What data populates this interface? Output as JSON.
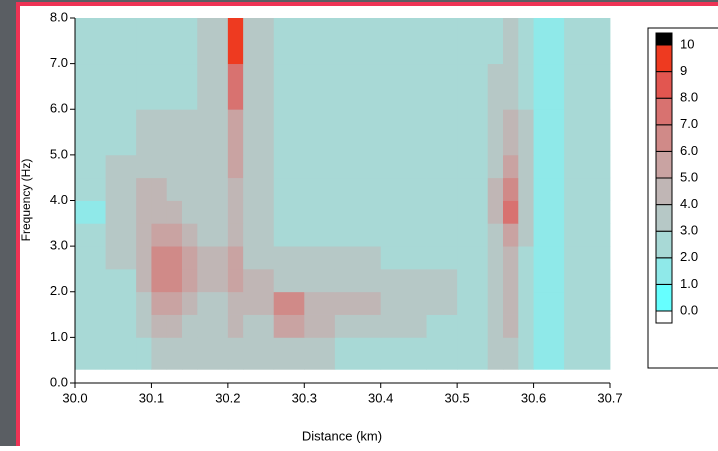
{
  "chart_data": {
    "type": "contour",
    "xlabel": "Distance (km)",
    "ylabel": "Frequency (Hz)",
    "xlim": [
      30.0,
      30.7
    ],
    "xticks": [
      {
        "value": 30,
        "label": "30.0"
      },
      30.1,
      30.2,
      30.3,
      30.4,
      30.5,
      30.6,
      30.7
    ],
    "ylim": [
      0,
      8
    ],
    "yticks": [
      {
        "value": 0,
        "label": "0.0"
      },
      {
        "value": 1,
        "label": "1.0"
      },
      {
        "value": 2,
        "label": "2.0"
      },
      {
        "value": 3,
        "label": "3.0"
      },
      {
        "value": 4,
        "label": "4.0"
      },
      {
        "value": 5,
        "label": "5.0"
      },
      {
        "value": 6,
        "label": "6.0"
      },
      {
        "value": 7,
        "label": "7.0"
      },
      {
        "value": 8,
        "label": "8.0"
      }
    ],
    "x_edges": [
      30.0,
      30.04,
      30.08,
      30.1,
      30.12,
      30.14,
      30.16,
      30.2,
      30.22,
      30.26,
      30.3,
      30.34,
      30.4,
      30.46,
      30.5,
      30.54,
      30.56,
      30.58,
      30.6,
      30.64,
      30.7
    ],
    "y_edges": [
      0.3,
      1.0,
      1.5,
      2.0,
      2.5,
      3.0,
      3.5,
      4.0,
      4.5,
      5.0,
      6.0,
      7.0,
      8.0
    ],
    "z": [
      [
        2,
        2,
        2.5,
        3,
        3,
        3,
        3,
        3.5,
        3,
        3,
        3,
        2.5,
        2.5,
        2.5,
        2,
        3,
        3,
        2,
        1,
        2
      ],
      [
        2,
        2,
        3,
        4,
        4,
        3.5,
        3,
        4,
        3.5,
        5,
        4,
        3,
        3,
        2.5,
        2,
        3,
        4,
        2.5,
        1,
        2
      ],
      [
        2,
        2,
        3.5,
        5,
        5.5,
        4,
        3.5,
        4.5,
        4,
        6.5,
        4.5,
        4,
        3.5,
        3.5,
        2,
        3,
        4,
        2.5,
        1,
        2
      ],
      [
        2,
        2.5,
        4,
        6,
        6.5,
        5,
        4.5,
        5.5,
        4,
        3.5,
        3.5,
        3.5,
        3.5,
        3,
        2,
        3,
        4.5,
        2.5,
        1,
        2
      ],
      [
        2,
        3,
        4,
        6.5,
        6.5,
        5,
        4.5,
        5,
        3.5,
        3,
        3,
        3,
        2.5,
        2.5,
        2,
        3,
        4.5,
        2.5,
        1,
        2
      ],
      [
        2,
        3,
        4,
        5,
        5,
        4,
        3.5,
        4.5,
        3,
        2.5,
        2.5,
        2.5,
        2.5,
        2,
        2,
        3.5,
        5.5,
        3,
        1,
        2
      ],
      [
        1.5,
        3,
        4,
        4.5,
        4,
        3.5,
        3,
        4.5,
        3,
        2.5,
        2.5,
        2,
        2,
        2,
        2,
        4,
        7,
        3,
        1,
        2
      ],
      [
        2,
        3,
        4,
        4,
        3.5,
        3,
        3,
        4.5,
        3,
        2.5,
        2.5,
        2.5,
        2,
        2,
        2,
        4,
        6.5,
        3,
        1,
        2
      ],
      [
        2,
        3,
        3.5,
        3.5,
        3,
        3,
        3,
        5,
        3,
        2.5,
        2.5,
        2,
        2,
        2,
        2,
        3.5,
        5,
        3,
        1,
        2
      ],
      [
        2,
        2.5,
        3,
        3,
        3,
        3,
        3,
        5.5,
        3,
        2.5,
        2.5,
        2.5,
        2,
        2.5,
        2,
        3,
        4,
        3,
        1,
        2
      ],
      [
        2,
        2,
        2.5,
        2.5,
        2.5,
        2.5,
        3,
        7.5,
        3,
        2.5,
        2,
        2.5,
        2,
        2,
        2,
        3,
        3.5,
        2.5,
        1,
        2
      ],
      [
        2,
        2,
        2,
        2,
        2.5,
        2,
        3,
        9,
        3,
        2.5,
        2,
        2,
        2,
        2,
        2,
        2.5,
        3,
        2.5,
        1,
        2
      ]
    ],
    "levels": [
      {
        "value": 0,
        "label": "0.0"
      },
      {
        "value": 1,
        "label": "1.0"
      },
      {
        "value": 2,
        "label": "2.0"
      },
      {
        "value": 3,
        "label": "3.0"
      },
      {
        "value": 4,
        "label": "4.0"
      },
      {
        "value": 5,
        "label": "5.0"
      },
      {
        "value": 6,
        "label": "6.0"
      },
      {
        "value": 7,
        "label": "7.0"
      },
      {
        "value": 8,
        "label": "8.0"
      },
      9,
      10
    ],
    "colors": [
      "#66ffff",
      "#8fe9e9",
      "#a8d9d6",
      "#b6c8c6",
      "#c0b6b5",
      "#c9a3a2",
      "#d08a88",
      "#d87270",
      "#e25650",
      "#ee3a20"
    ],
    "over_color": "#000000",
    "under_color": "#ffffff"
  }
}
